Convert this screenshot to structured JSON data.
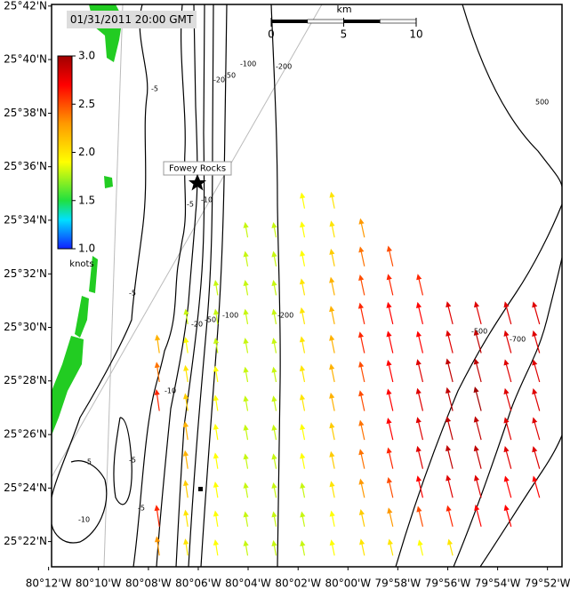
{
  "map": {
    "timestamp": "01/31/2011 20:00 GMT",
    "station": "Fowey Rocks",
    "scale_bar": {
      "unit": "km",
      "ticks": [
        0,
        5,
        10
      ]
    },
    "colorbar": {
      "label": "knots",
      "ticks": [
        {
          "value": 1,
          "label": "1.0"
        },
        {
          "value": 1.5,
          "label": "1.5"
        },
        {
          "value": 2,
          "label": "2.0"
        },
        {
          "value": 2.5,
          "label": "2.5"
        },
        {
          "value": 3,
          "label": "3.0"
        }
      ],
      "colorscale": [
        [
          1,
          "#1020ff"
        ],
        [
          1.3,
          "#00e0ff"
        ],
        [
          1.5,
          "#20e040"
        ],
        [
          1.9,
          "#ffff00"
        ],
        [
          2.3,
          "#ff9900"
        ],
        [
          2.7,
          "#ff0000"
        ],
        [
          3,
          "#a00000"
        ]
      ]
    },
    "xlim": [
      -80.198,
      -79.857
    ],
    "ylim": [
      25.351,
      25.701
    ],
    "xticks": [
      {
        "value": -80.2,
        "label": "80°12'W"
      },
      {
        "value": -80.1667,
        "label": "80°10'W"
      },
      {
        "value": -80.1333,
        "label": "80°08'W"
      },
      {
        "value": -80.1,
        "label": "80°06'W"
      },
      {
        "value": -80.0667,
        "label": "80°04'W"
      },
      {
        "value": -80.0333,
        "label": "80°02'W"
      },
      {
        "value": -80.0,
        "label": "80°00'W"
      },
      {
        "value": -79.9667,
        "label": "79°58'W"
      },
      {
        "value": -79.9333,
        "label": "79°56'W"
      },
      {
        "value": -79.9,
        "label": "79°54'W"
      },
      {
        "value": -79.8667,
        "label": "79°52'W"
      }
    ],
    "yticks": [
      {
        "value": 25.7,
        "label": "25°42'N"
      },
      {
        "value": 25.6667,
        "label": "25°40'N"
      },
      {
        "value": 25.6333,
        "label": "25°38'N"
      },
      {
        "value": 25.6,
        "label": "25°36'N"
      },
      {
        "value": 25.5667,
        "label": "25°34'N"
      },
      {
        "value": 25.5333,
        "label": "25°32'N"
      },
      {
        "value": 25.5,
        "label": "25°30'N"
      },
      {
        "value": 25.4667,
        "label": "25°28'N"
      },
      {
        "value": 25.4333,
        "label": "25°26'N"
      },
      {
        "value": 25.4,
        "label": "25°24'N"
      },
      {
        "value": 25.3667,
        "label": "25°22'N"
      }
    ],
    "contour_labels": [
      "-5",
      "-20",
      "-50",
      "-100",
      "-200",
      "-5",
      "-10",
      "-5",
      "-20",
      "-50",
      "-100",
      "-200",
      "-500",
      "-700",
      "500",
      "-5",
      "-10",
      "-5",
      "-5",
      "-10"
    ],
    "vectors": {
      "lon": [
        -80.126,
        -80.107,
        -80.087,
        -80.067,
        -80.048,
        -80.029,
        -80.009,
        -79.989,
        -79.97,
        -79.95,
        -79.93,
        -79.911,
        -79.891,
        -79.872
      ],
      "lat": [
        25.574,
        25.556,
        25.538,
        25.52,
        25.502,
        25.484,
        25.466,
        25.448,
        25.43,
        25.412,
        25.394,
        25.376,
        25.358
      ],
      "speed": [
        [
          null,
          null,
          null,
          null,
          null,
          1.9,
          2.0,
          null,
          null,
          null,
          null,
          null,
          null,
          null
        ],
        [
          null,
          null,
          null,
          1.8,
          1.8,
          1.9,
          2.0,
          2.3,
          null,
          null,
          null,
          null,
          null,
          null
        ],
        [
          null,
          null,
          null,
          1.8,
          1.8,
          1.9,
          2.1,
          2.4,
          2.5,
          null,
          null,
          null,
          null,
          null
        ],
        [
          null,
          null,
          1.8,
          1.8,
          1.8,
          2.0,
          2.2,
          2.5,
          2.6,
          2.6,
          null,
          null,
          null,
          null
        ],
        [
          null,
          1.8,
          1.8,
          1.8,
          1.8,
          2.0,
          2.2,
          2.6,
          2.7,
          2.7,
          2.8,
          2.8,
          2.8,
          2.8
        ],
        [
          2.2,
          1.9,
          1.8,
          1.8,
          1.8,
          2.0,
          2.2,
          2.6,
          2.7,
          2.7,
          2.8,
          2.9,
          2.8,
          2.8
        ],
        [
          2.4,
          2.0,
          1.9,
          1.8,
          1.8,
          2.0,
          2.2,
          2.5,
          2.7,
          2.8,
          2.9,
          2.9,
          2.8,
          2.8
        ],
        [
          2.6,
          2.1,
          1.9,
          1.8,
          1.8,
          2.0,
          2.2,
          2.5,
          2.7,
          2.8,
          2.9,
          3.0,
          2.8,
          2.8
        ],
        [
          null,
          2.2,
          1.9,
          1.8,
          1.8,
          1.9,
          2.1,
          2.4,
          2.7,
          2.8,
          2.9,
          2.9,
          2.8,
          2.8
        ],
        [
          null,
          2.2,
          1.9,
          1.8,
          1.8,
          1.9,
          2.1,
          2.4,
          2.6,
          2.8,
          2.9,
          2.9,
          2.8,
          2.8
        ],
        [
          null,
          2.1,
          1.9,
          1.8,
          1.8,
          1.8,
          2.0,
          2.3,
          2.5,
          2.7,
          2.8,
          2.8,
          2.7,
          2.7
        ],
        [
          2.6,
          2.0,
          1.9,
          1.8,
          1.8,
          1.8,
          1.9,
          2.1,
          2.3,
          2.5,
          2.6,
          2.7,
          2.7,
          null
        ],
        [
          2.3,
          2.0,
          1.9,
          1.8,
          1.8,
          1.8,
          1.9,
          2.0,
          2.0,
          1.9,
          2.0,
          null,
          null,
          null
        ]
      ]
    }
  }
}
